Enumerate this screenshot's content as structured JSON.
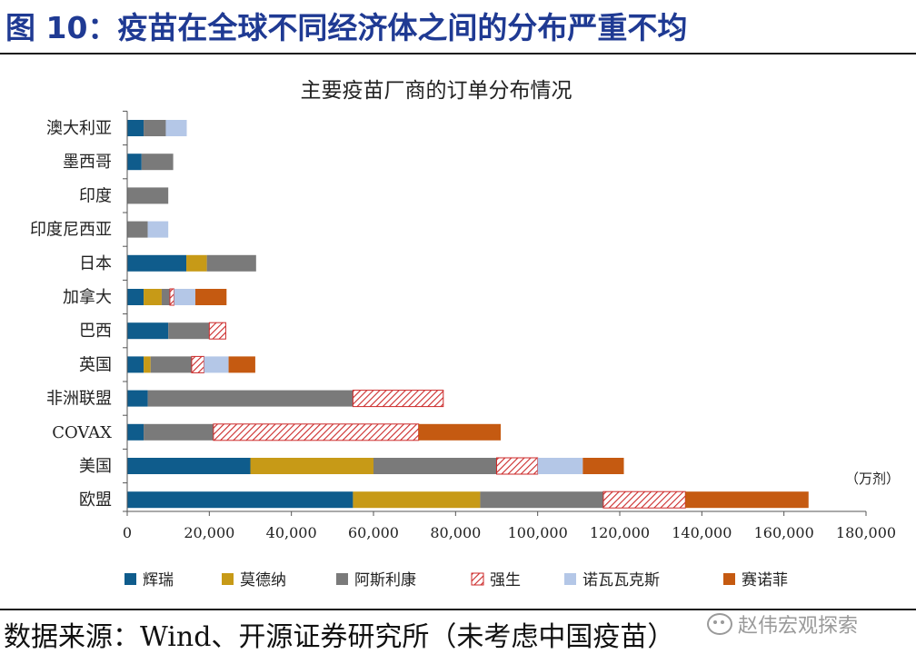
{
  "figure_title": "图 10：疫苗在全球不同经济体之间的分布严重不均",
  "source_note": "数据来源：Wind、开源证券研究所（未考虑中国疫苗）",
  "watermark": "赵伟宏观探索",
  "chart_data": {
    "type": "bar",
    "orientation": "horizontal",
    "stacked": true,
    "title": "主要疫苗厂商的订单分布情况",
    "unit_label": "（万剂）",
    "xlim": [
      0,
      180000
    ],
    "x_ticks": [
      0,
      20000,
      40000,
      60000,
      80000,
      100000,
      120000,
      140000,
      160000,
      180000
    ],
    "x_tick_labels": [
      "0",
      "20,000",
      "40,000",
      "60,000",
      "80,000",
      "100,000",
      "120,000",
      "140,000",
      "160,000",
      "180,000"
    ],
    "grid": false,
    "legend_position": "bottom",
    "categories": [
      "澳大利亚",
      "墨西哥",
      "印度",
      "印度尼西亚",
      "日本",
      "加拿大",
      "巴西",
      "英国",
      "非洲联盟",
      "COVAX",
      "美国",
      "欧盟"
    ],
    "series": [
      {
        "name": "辉瑞",
        "color": "#0f5c8c",
        "pattern": "solid",
        "values": [
          4000,
          3500,
          0,
          0,
          14400,
          4000,
          10000,
          4000,
          5000,
          4000,
          30000,
          55000
        ]
      },
      {
        "name": "莫德纳",
        "color": "#c79a17",
        "pattern": "solid",
        "values": [
          0,
          0,
          0,
          0,
          5000,
          4400,
          0,
          1700,
          0,
          0,
          30000,
          31000
        ]
      },
      {
        "name": "阿斯利康",
        "color": "#7a7a7a",
        "pattern": "solid",
        "values": [
          5400,
          7700,
          10000,
          5000,
          12000,
          2000,
          10000,
          10000,
          50000,
          17000,
          30000,
          30000
        ]
      },
      {
        "name": "强生",
        "color": "#cc2a2a",
        "pattern": "hatch",
        "values": [
          0,
          0,
          0,
          0,
          0,
          1000,
          4000,
          3000,
          22000,
          50000,
          10000,
          20000
        ]
      },
      {
        "name": "诺瓦瓦克斯",
        "color": "#b4c7e7",
        "pattern": "solid",
        "values": [
          5100,
          0,
          0,
          5000,
          0,
          5200,
          0,
          6000,
          0,
          0,
          11000,
          0
        ]
      },
      {
        "name": "赛诺菲",
        "color": "#c55a11",
        "pattern": "solid",
        "values": [
          0,
          0,
          0,
          0,
          0,
          7600,
          0,
          6500,
          0,
          20000,
          10000,
          30000
        ]
      }
    ]
  }
}
